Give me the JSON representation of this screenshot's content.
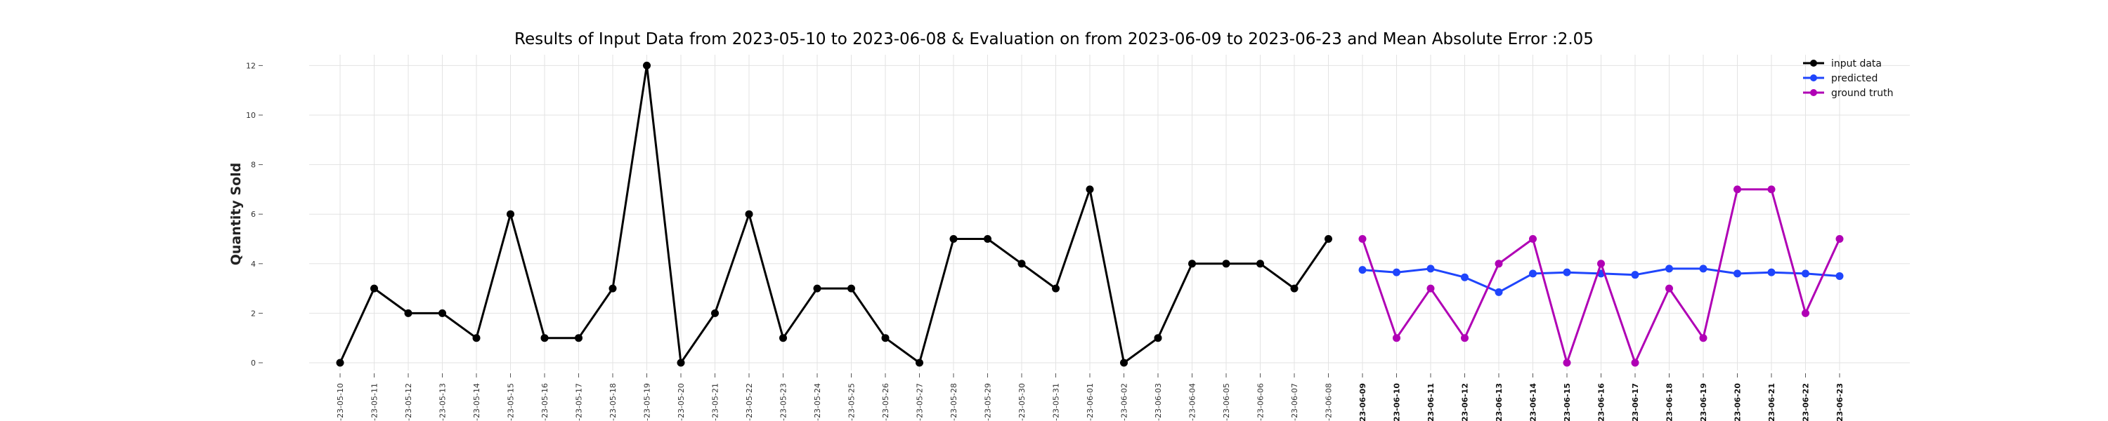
{
  "chart_data": {
    "type": "line",
    "title": "Results of Input Data from 2023-05-10 to 2023-06-08 & Evaluation on from 2023-06-09 to 2023-06-23 and Mean Absolute Error  :2.05",
    "ylabel": "Quantity Sold",
    "xlabel": "",
    "ylim": [
      -0.6,
      12.6
    ],
    "yticks": [
      0,
      2,
      4,
      6,
      8,
      10,
      12
    ],
    "grid": true,
    "legend_position": "top-right",
    "tick_labels": [
      "-23-05-10",
      "-23-05-11",
      "-23-05-12",
      "-23-05-13",
      "-23-05-14",
      "-23-05-15",
      "-23-05-16",
      "-23-05-17",
      "-23-05-18",
      "-23-05-19",
      "-23-05-20",
      "-23-05-21",
      "-23-05-22",
      "-23-05-23",
      "-23-05-24",
      "-23-05-25",
      "-23-05-26",
      "-23-05-27",
      "-23-05-28",
      "-23-05-29",
      "-23-05-30",
      "-23-05-31",
      "-23-06-01",
      "-23-06-02",
      "-23-06-03",
      "-23-06-04",
      "-23-06-05",
      "-23-06-06",
      "-23-06-07",
      "-23-06-08",
      "-23-06-09",
      "-23-06-10",
      "-23-06-11",
      "-23-06-12",
      "-23-06-13",
      "-23-06-14",
      "-23-06-15",
      "-23-06-16",
      "-23-06-17",
      "-23-06-18",
      "-23-06-19",
      "-23-06-20",
      "-23-06-21",
      "-23-06-22",
      "-23-06-23"
    ],
    "series": [
      {
        "name": "input data",
        "color": "#000000",
        "x": [
          "2023-05-10",
          "2023-05-11",
          "2023-05-12",
          "2023-05-13",
          "2023-05-14",
          "2023-05-15",
          "2023-05-16",
          "2023-05-17",
          "2023-05-18",
          "2023-05-19",
          "2023-05-20",
          "2023-05-21",
          "2023-05-22",
          "2023-05-23",
          "2023-05-24",
          "2023-05-25",
          "2023-05-26",
          "2023-05-27",
          "2023-05-28",
          "2023-05-29",
          "2023-05-30",
          "2023-05-31",
          "2023-06-01",
          "2023-06-02",
          "2023-06-03",
          "2023-06-04",
          "2023-06-05",
          "2023-06-06",
          "2023-06-07",
          "2023-06-08"
        ],
        "values": [
          0,
          3,
          2,
          2,
          1,
          6,
          1,
          1,
          3,
          12,
          0,
          2,
          6,
          1,
          3,
          3,
          1,
          0,
          5,
          5,
          4,
          3,
          7,
          0,
          1,
          4,
          4,
          4,
          3,
          5
        ]
      },
      {
        "name": "predicted",
        "color": "#1f45fc",
        "x": [
          "2023-06-09",
          "2023-06-10",
          "2023-06-11",
          "2023-06-12",
          "2023-06-13",
          "2023-06-14",
          "2023-06-15",
          "2023-06-16",
          "2023-06-17",
          "2023-06-18",
          "2023-06-19",
          "2023-06-20",
          "2023-06-21",
          "2023-06-22",
          "2023-06-23"
        ],
        "values": [
          3.75,
          3.65,
          3.8,
          3.45,
          2.85,
          3.6,
          3.65,
          3.6,
          3.55,
          3.8,
          3.8,
          3.6,
          3.65,
          3.6,
          3.5
        ]
      },
      {
        "name": "ground truth",
        "color": "#b000b5",
        "x": [
          "2023-06-09",
          "2023-06-10",
          "2023-06-11",
          "2023-06-12",
          "2023-06-13",
          "2023-06-14",
          "2023-06-15",
          "2023-06-16",
          "2023-06-17",
          "2023-06-18",
          "2023-06-19",
          "2023-06-20",
          "2023-06-21",
          "2023-06-22",
          "2023-06-23"
        ],
        "values": [
          5,
          1,
          3,
          1,
          4,
          5,
          0,
          4,
          0,
          3,
          1,
          7,
          7,
          2,
          5
        ]
      }
    ]
  }
}
